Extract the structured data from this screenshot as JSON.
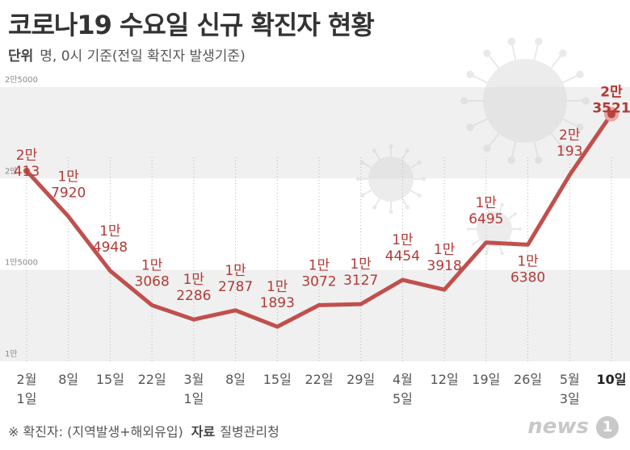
{
  "title": "코로나19 수요일 신규 확진자 현황",
  "unit_label": "단위",
  "unit_text": "명, 0시 기준(전일 확진자 발생기준)",
  "footnote_text": "※ 확진자: (지역발생+해외유입)",
  "source_label": "자료",
  "source_text": "질병관리청",
  "logo": {
    "text": "news",
    "mark": "1"
  },
  "colors": {
    "line": "#c0504d",
    "label": "#b03a35",
    "band": "#f0f0f0",
    "text": "#555555"
  },
  "chart_data": {
    "type": "line",
    "title": "코로나19 수요일 신규 확진자 현황",
    "ylim": [
      10000,
      25000
    ],
    "yticks": [
      {
        "value": 10000,
        "label": "1만"
      },
      {
        "value": 15000,
        "label": "1만5000"
      },
      {
        "value": 20000,
        "label": "2만"
      },
      {
        "value": 25000,
        "label": "2만5000"
      }
    ],
    "categories": [
      {
        "line1": "2월",
        "line2": "1일"
      },
      {
        "line1": "8일",
        "line2": ""
      },
      {
        "line1": "15일",
        "line2": ""
      },
      {
        "line1": "22일",
        "line2": ""
      },
      {
        "line1": "3월",
        "line2": "1일"
      },
      {
        "line1": "8일",
        "line2": ""
      },
      {
        "line1": "15일",
        "line2": ""
      },
      {
        "line1": "22일",
        "line2": ""
      },
      {
        "line1": "29일",
        "line2": ""
      },
      {
        "line1": "4월",
        "line2": "5일"
      },
      {
        "line1": "12일",
        "line2": ""
      },
      {
        "line1": "19일",
        "line2": ""
      },
      {
        "line1": "26일",
        "line2": ""
      },
      {
        "line1": "5월",
        "line2": "3일"
      },
      {
        "line1": "10일",
        "line2": ""
      }
    ],
    "values": [
      20413,
      17920,
      14948,
      13068,
      12286,
      12787,
      11893,
      13072,
      13127,
      14454,
      13918,
      16495,
      16380,
      20193,
      23521
    ],
    "labels": [
      {
        "top": "2만",
        "bottom": "413"
      },
      {
        "top": "1만",
        "bottom": "7920"
      },
      {
        "top": "1만",
        "bottom": "4948"
      },
      {
        "top": "1만",
        "bottom": "3068"
      },
      {
        "top": "1만",
        "bottom": "2286"
      },
      {
        "top": "1만",
        "bottom": "2787"
      },
      {
        "top": "1만",
        "bottom": "1893"
      },
      {
        "top": "1만",
        "bottom": "3072"
      },
      {
        "top": "1만",
        "bottom": "3127"
      },
      {
        "top": "1만",
        "bottom": "4454"
      },
      {
        "top": "1만",
        "bottom": "3918"
      },
      {
        "top": "1만",
        "bottom": "6495"
      },
      {
        "top": "1만",
        "bottom": "6380"
      },
      {
        "top": "2만",
        "bottom": "193"
      },
      {
        "top": "2만",
        "bottom": "3521"
      }
    ],
    "highlight_index": 14
  }
}
